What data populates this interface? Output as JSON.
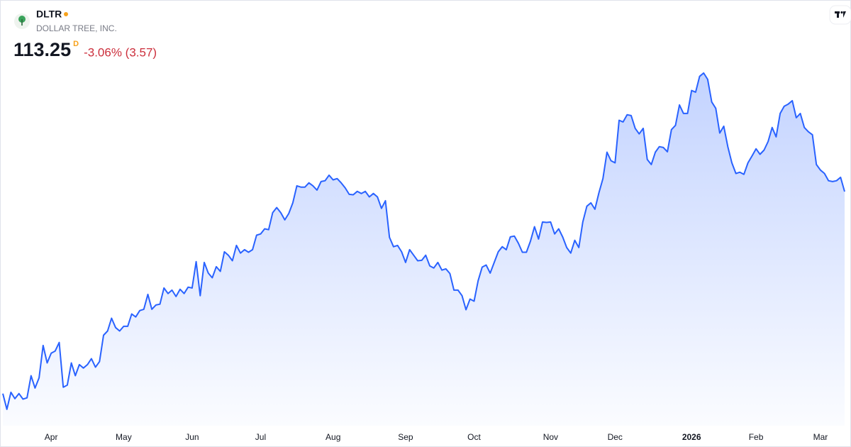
{
  "chart_data": {
    "type": "area",
    "title": "DLTR",
    "subtitle": "DOLLAR TREE, INC.",
    "price": 113.25,
    "price_suffix": "D",
    "change": "-3.06% (3.57)",
    "color": "#2962ff",
    "change_color": "#cc2f3c",
    "ylim": [
      53.25,
      158.25
    ],
    "xticks": [
      {
        "value": 12,
        "label": "Apr"
      },
      {
        "value": 30,
        "label": "May"
      },
      {
        "value": 47,
        "label": "Jun"
      },
      {
        "value": 64,
        "label": "Jul"
      },
      {
        "value": 82,
        "label": "Aug"
      },
      {
        "value": 100,
        "label": "Sep"
      },
      {
        "value": 117,
        "label": "Oct"
      },
      {
        "value": 136,
        "label": "Nov"
      },
      {
        "value": 152,
        "label": "Dec"
      },
      {
        "value": 171,
        "label": "2026",
        "bold": true
      },
      {
        "value": 187,
        "label": "Feb"
      },
      {
        "value": 203,
        "label": "Mar"
      }
    ],
    "values": [
      65.8,
      62.1,
      66.1,
      64.6,
      65.8,
      64.5,
      64.8,
      70.0,
      67.1,
      69.5,
      77.1,
      73.0,
      75.3,
      75.8,
      77.8,
      67.3,
      67.8,
      73.0,
      70.0,
      72.6,
      71.8,
      72.6,
      74.0,
      72.0,
      73.3,
      79.5,
      80.5,
      83.5,
      81.3,
      80.5,
      81.6,
      81.6,
      84.5,
      83.8,
      85.3,
      85.6,
      89.1,
      85.6,
      86.6,
      86.8,
      90.6,
      89.3,
      90.1,
      88.6,
      90.3,
      89.3,
      90.8,
      90.6,
      96.8,
      88.8,
      96.6,
      94.1,
      93.0,
      95.6,
      94.5,
      99.1,
      98.3,
      97.0,
      100.6,
      98.8,
      99.6,
      99.0,
      99.6,
      103.0,
      103.3,
      104.5,
      104.3,
      108.3,
      109.5,
      108.3,
      106.6,
      108.1,
      110.6,
      114.6,
      114.3,
      114.3,
      115.3,
      114.6,
      113.6,
      115.6,
      115.8,
      117.1,
      116.0,
      116.3,
      115.3,
      114.1,
      112.6,
      112.5,
      113.3,
      112.8,
      113.3,
      112.0,
      112.8,
      112.0,
      109.3,
      111.1,
      102.5,
      100.3,
      100.6,
      99.1,
      96.6,
      99.6,
      98.3,
      97.0,
      97.1,
      98.3,
      95.8,
      95.3,
      96.6,
      94.8,
      95.1,
      94.0,
      90.1,
      90.1,
      88.8,
      85.5,
      88.0,
      87.5,
      92.3,
      95.5,
      96.0,
      94.1,
      96.6,
      99.1,
      100.3,
      99.6,
      102.6,
      102.8,
      101.1,
      99.0,
      99.0,
      101.6,
      105.0,
      102.1,
      106.1,
      106.0,
      106.1,
      103.3,
      104.5,
      102.6,
      100.1,
      98.8,
      101.8,
      100.1,
      106.1,
      109.8,
      110.6,
      109.1,
      113.0,
      116.3,
      122.5,
      120.5,
      120.0,
      130.0,
      129.6,
      131.3,
      131.1,
      128.1,
      126.8,
      128.1,
      120.8,
      119.6,
      122.5,
      123.8,
      123.6,
      122.6,
      127.8,
      128.8,
      133.6,
      131.6,
      131.6,
      137.0,
      136.6,
      140.3,
      141.1,
      139.6,
      134.3,
      132.8,
      127.0,
      128.6,
      123.8,
      120.0,
      117.5,
      117.8,
      117.3,
      120.0,
      121.6,
      123.3,
      122.0,
      123.0,
      125.0,
      128.3,
      126.1,
      131.6,
      133.3,
      133.8,
      134.6,
      130.6,
      131.6,
      128.3,
      127.3,
      126.6,
      119.6,
      118.3,
      117.5,
      115.8,
      115.6,
      115.8,
      116.6,
      113.25
    ]
  }
}
